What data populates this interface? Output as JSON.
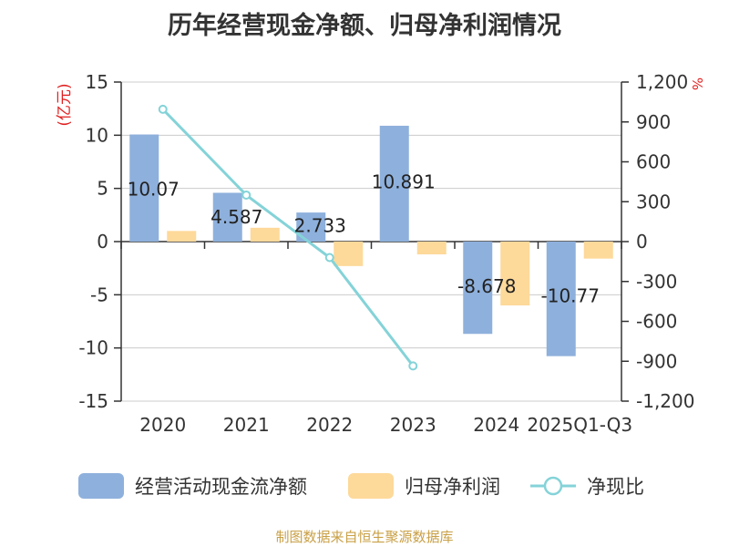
{
  "title": "历年经营现金净额、归母净利润情况",
  "source": "制图数据来自恒生聚源数据库",
  "colors": {
    "op_cash": "#8eb0dc",
    "net_profit": "#fdd99a",
    "ratio": "#84d3d8",
    "unit": "#e02020"
  },
  "chart_data": {
    "type": "bar",
    "title": "历年经营现金净额、归母净利润情况",
    "categories": [
      "2020",
      "2021",
      "2022",
      "2023",
      "2024",
      "2025Q1-Q3"
    ],
    "ylabel": "(亿元)",
    "y2label": "%",
    "ylim": [
      -15,
      15
    ],
    "yticks": [
      15,
      10,
      5,
      0,
      -5,
      -10,
      -15
    ],
    "y2lim": [
      -1200,
      1200
    ],
    "y2ticks": [
      "1,200",
      "900",
      "600",
      "300",
      "0",
      "-300",
      "-600",
      "-900",
      "-1,200"
    ],
    "y2tick_values": [
      1200,
      900,
      600,
      300,
      0,
      -300,
      -600,
      -900,
      -1200
    ],
    "series": [
      {
        "name": "经营活动现金流净额",
        "type": "bar",
        "axis": "left",
        "values": [
          10.07,
          4.587,
          2.733,
          10.891,
          -8.678,
          -10.77
        ],
        "labels": [
          "10.07",
          "4.587",
          "2.733",
          "10.891",
          "-8.678",
          "-10.77"
        ]
      },
      {
        "name": "归母净利润",
        "type": "bar",
        "axis": "left",
        "values": [
          1.0,
          1.3,
          -2.3,
          -1.2,
          -6.0,
          -1.6
        ]
      },
      {
        "name": "净现比",
        "type": "line",
        "axis": "right",
        "values": [
          995,
          350,
          -120,
          -935,
          null,
          null
        ]
      }
    ]
  }
}
